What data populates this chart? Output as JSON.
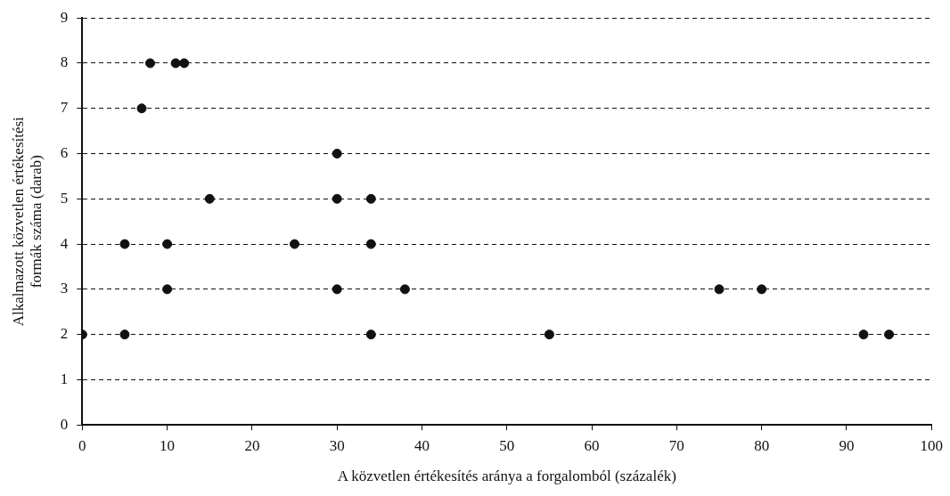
{
  "chart_data": {
    "type": "scatter",
    "xlabel": "A közvetlen értékesítés aránya a forgalomból (százalék)",
    "ylabel": "Alkalmazott közvetlen értékesítési\nformák száma (darab)",
    "x": [
      0,
      5,
      5,
      7,
      8,
      11,
      12,
      15,
      10,
      10,
      25,
      30,
      30,
      30,
      34,
      34,
      34,
      38,
      55,
      75,
      80,
      92,
      95
    ],
    "values": [
      2,
      2,
      4,
      7,
      8,
      8,
      8,
      5,
      4,
      3,
      4,
      6,
      5,
      3,
      5,
      4,
      2,
      3,
      2,
      3,
      3,
      2,
      2
    ],
    "color": "#111111",
    "marker": "circle",
    "xlim": [
      0,
      100
    ],
    "xticks": [
      0,
      10,
      20,
      30,
      40,
      50,
      60,
      70,
      80,
      90,
      100
    ],
    "ylim": [
      0,
      9
    ],
    "yticks": [
      0,
      1,
      2,
      3,
      4,
      5,
      6,
      7,
      8,
      9
    ],
    "grid": "y",
    "legend": false
  }
}
